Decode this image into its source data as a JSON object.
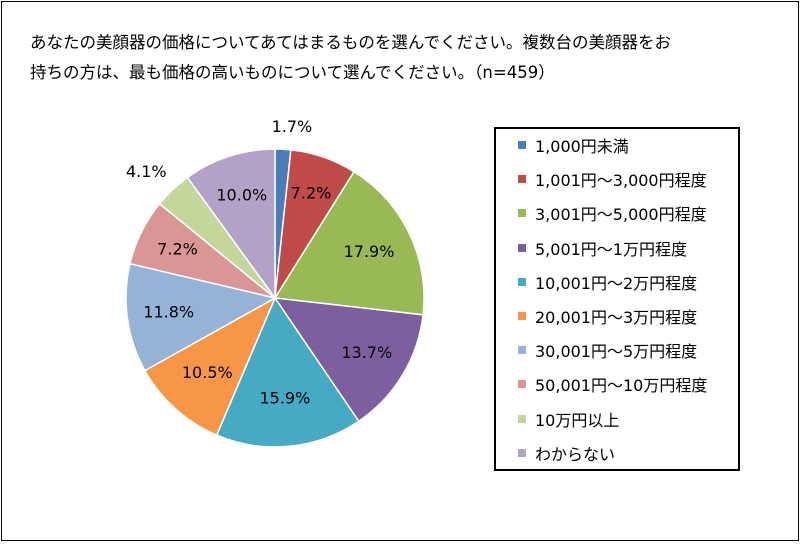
{
  "title_lines": [
    "あなたの美顔器の価格についてあてはまるものを選んでください。複数台の美顔器をお",
    "持ちの方は、最も価格の高いものについて選んでください。（n=459）"
  ],
  "chart_data": {
    "type": "pie",
    "title": "あなたの美顔器の価格についてあてはまるものを選んでください。複数台の美顔器をお持ちの方は、最も価格の高いものについて選んでください。（n=459）",
    "categories": [
      "1,000円未満",
      "1,001円～3,000円程度",
      "3,001円～5,000円程度",
      "5,001円～1万円程度",
      "10,001円～2万円程度",
      "20,001円～3万円程度",
      "30,001円～5万円程度",
      "50,001円～10万円程度",
      "10万円以上",
      "わからない"
    ],
    "values": [
      1.7,
      7.2,
      17.9,
      13.7,
      15.9,
      10.5,
      11.8,
      7.2,
      4.1,
      10.0
    ],
    "labels": [
      "1.7%",
      "7.2%",
      "17.9%",
      "13.7%",
      "15.9%",
      "10.5%",
      "11.8%",
      "7.2%",
      "4.1%",
      "10.0%"
    ],
    "colors": [
      "#4a7ebb",
      "#be4b48",
      "#98b954",
      "#7d5fa0",
      "#46aac5",
      "#f79646",
      "#94b3d6",
      "#d99694",
      "#c3d69b",
      "#b3a2c7"
    ],
    "start": "12 o'clock, clockwise",
    "legend_position": "right"
  }
}
